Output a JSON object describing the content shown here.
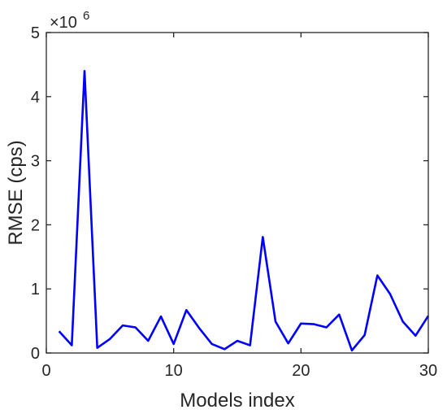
{
  "chart_data": {
    "type": "line",
    "xlabel": "Models index",
    "ylabel": "RMSE (cps)",
    "xlim": [
      0,
      30
    ],
    "ylim": [
      0,
      5
    ],
    "xticks": [
      0,
      10,
      20,
      30
    ],
    "yticks": [
      0,
      1,
      2,
      3,
      4,
      5
    ],
    "y_scale_label": {
      "base": "×10",
      "exponent": "6"
    },
    "grid": false,
    "legend": "none",
    "line_color": "#0000ff",
    "series": [
      {
        "x": [
          1,
          2,
          3,
          4,
          5,
          6,
          7,
          8,
          9,
          10,
          11,
          12,
          13,
          14,
          15,
          16,
          17,
          18,
          19,
          20,
          21,
          22,
          23,
          24,
          25,
          26,
          27,
          28,
          29,
          30
        ],
        "values": [
          0.34,
          0.12,
          4.4,
          0.08,
          0.22,
          0.43,
          0.4,
          0.19,
          0.57,
          0.14,
          0.67,
          0.39,
          0.14,
          0.06,
          0.19,
          0.12,
          1.81,
          0.49,
          0.15,
          0.46,
          0.45,
          0.4,
          0.6,
          0.04,
          0.28,
          1.21,
          0.92,
          0.49,
          0.27,
          0.58
        ]
      }
    ]
  }
}
